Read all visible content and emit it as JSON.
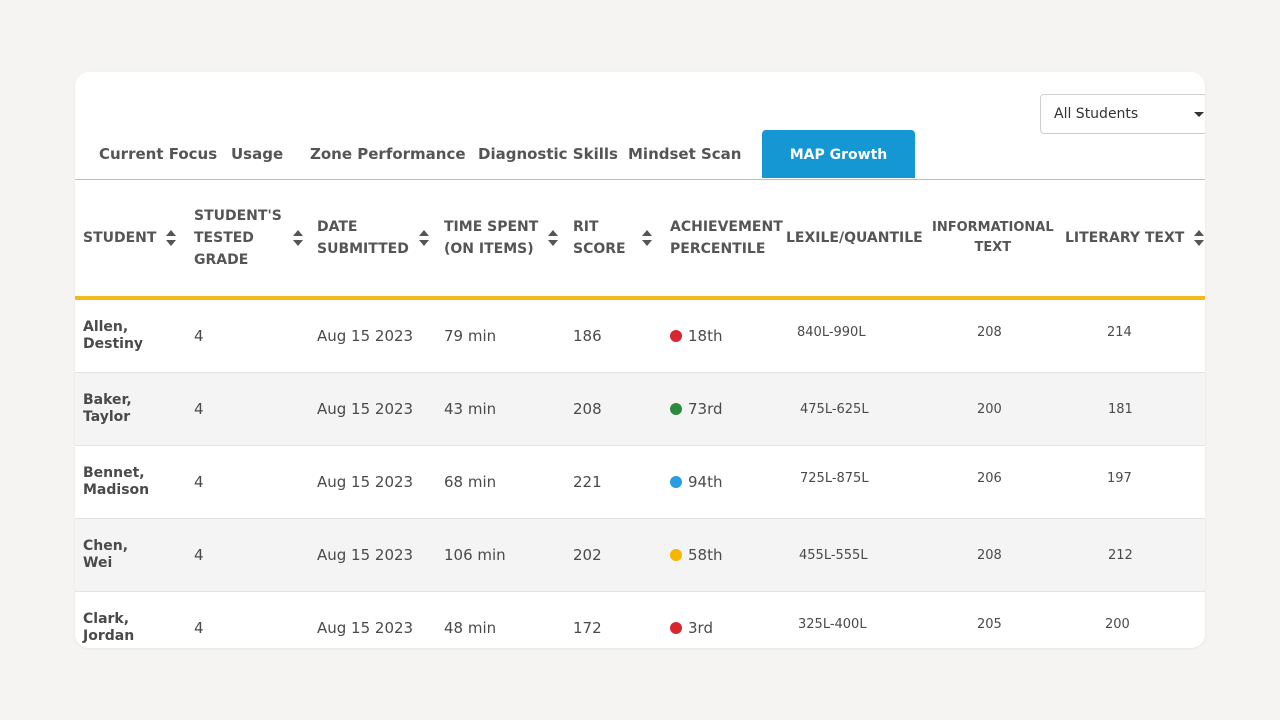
{
  "filter": {
    "selected": "All Students"
  },
  "tabs": [
    {
      "label": "Current Focus"
    },
    {
      "label": "Usage"
    },
    {
      "label": "Zone Performance"
    },
    {
      "label": "Diagnostic Skills"
    },
    {
      "label": "Mindset Scan"
    },
    {
      "label": "MAP Growth",
      "active": true
    }
  ],
  "columns": [
    {
      "label_lines": [
        "STUDENT"
      ],
      "sortable": true
    },
    {
      "label_lines": [
        "STUDENT'S",
        "TESTED",
        "GRADE"
      ],
      "sortable": true
    },
    {
      "label_lines": [
        "DATE",
        "SUBMITTED"
      ],
      "sortable": true
    },
    {
      "label_lines": [
        "TIME SPENT",
        "(ON ITEMS)"
      ],
      "sortable": true
    },
    {
      "label_lines": [
        "RIT",
        "SCORE"
      ],
      "sortable": true
    },
    {
      "label_lines": [
        "ACHIEVEMENT",
        "PERCENTILE"
      ],
      "sortable": false
    },
    {
      "label_lines": [
        "LEXILE/QUANTILE"
      ],
      "sortable": false
    },
    {
      "label_lines": [
        "INFORMATIONAL",
        "TEXT"
      ],
      "sortable": false
    },
    {
      "label_lines": [
        "LITERARY TEXT"
      ],
      "sortable": true
    }
  ],
  "rows": [
    {
      "last": "Allen,",
      "first": "Destiny",
      "grade": "4",
      "date": "Aug 15 2023",
      "time": "79 min",
      "rit": "186",
      "percentile": "18th",
      "percentile_color": "#d9262e",
      "lexile": "840L-990L",
      "informational": "208",
      "literary": "214"
    },
    {
      "last": "Baker,",
      "first": "Taylor",
      "grade": "4",
      "date": "Aug 15 2023",
      "time": "43 min",
      "rit": "208",
      "percentile": "73rd",
      "percentile_color": "#2e8b3d",
      "lexile": "475L-625L",
      "informational": "200",
      "literary": "181"
    },
    {
      "last": "Bennet,",
      "first": "Madison",
      "grade": "4",
      "date": "Aug 15 2023",
      "time": "68 min",
      "rit": "221",
      "percentile": "94th",
      "percentile_color": "#2a9de0",
      "lexile": "725L-875L",
      "informational": "206",
      "literary": "197"
    },
    {
      "last": "Chen,",
      "first": "Wei",
      "grade": "4",
      "date": "Aug 15 2023",
      "time": "106 min",
      "rit": "202",
      "percentile": "58th",
      "percentile_color": "#f7b500",
      "lexile": "455L-555L",
      "informational": "208",
      "literary": "212"
    },
    {
      "last": "Clark,",
      "first": "Jordan",
      "grade": "4",
      "date": "Aug 15 2023",
      "time": "48 min",
      "rit": "172",
      "percentile": "3rd",
      "percentile_color": "#d9262e",
      "lexile": "325L-400L",
      "informational": "205",
      "literary": "200"
    }
  ]
}
